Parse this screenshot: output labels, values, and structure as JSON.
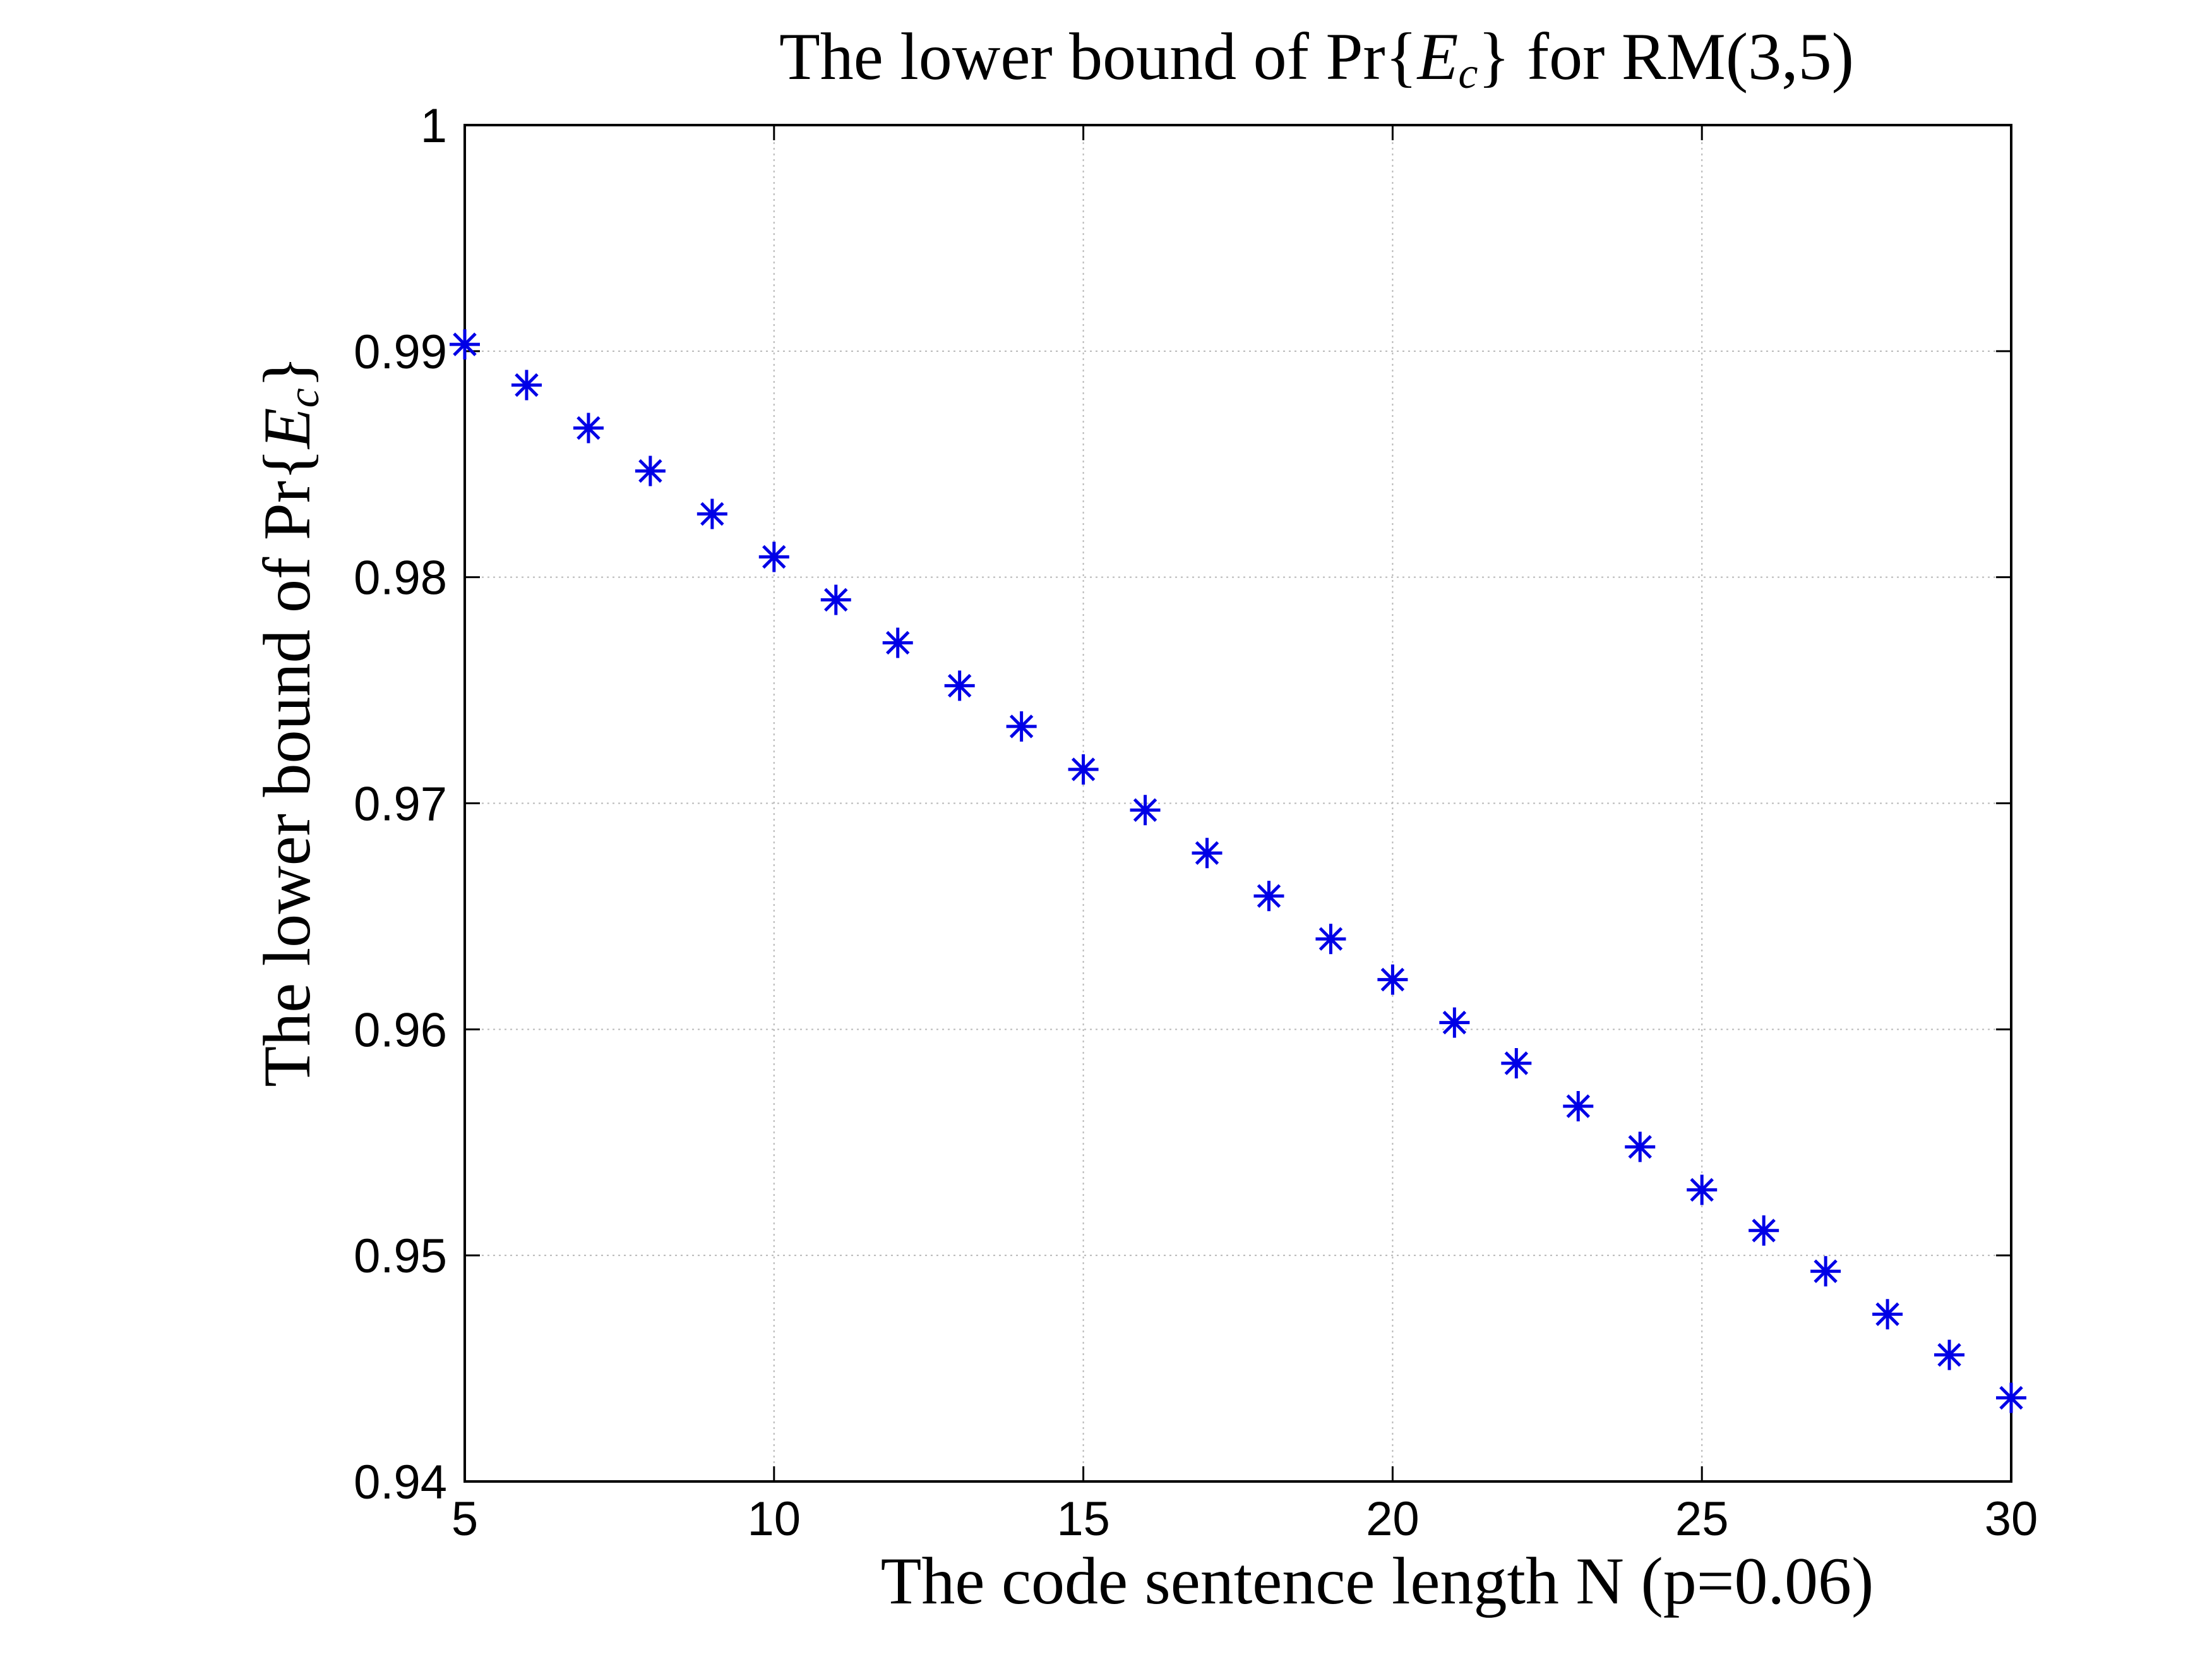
{
  "chart_data": {
    "type": "scatter",
    "title": {
      "prefix": "The lower bound of Pr",
      "open": "{",
      "var": "E",
      "sub": "c",
      "close": "}",
      "suffix": " for RM(3,5)"
    },
    "xlabel": "The code sentence length N (p=0.06)",
    "ylabel": {
      "prefix": "The lower bound of Pr",
      "open": "{",
      "var": "E",
      "sub": "c",
      "close": "}"
    },
    "xlim": [
      5,
      30
    ],
    "ylim": [
      0.94,
      1
    ],
    "grid": true,
    "marker": "asterisk",
    "color": "#0000e6",
    "x_ticks": [
      {
        "value": 5,
        "label": "5"
      },
      {
        "value": 10,
        "label": "10"
      },
      {
        "value": 15,
        "label": "15"
      },
      {
        "value": 20,
        "label": "20"
      },
      {
        "value": 25,
        "label": "25"
      },
      {
        "value": 30,
        "label": "30"
      }
    ],
    "y_ticks": [
      {
        "value": 0.94,
        "label": "0.94"
      },
      {
        "value": 0.95,
        "label": "0.95"
      },
      {
        "value": 0.96,
        "label": "0.96"
      },
      {
        "value": 0.97,
        "label": "0.97"
      },
      {
        "value": 0.98,
        "label": "0.98"
      },
      {
        "value": 0.99,
        "label": "0.99"
      },
      {
        "value": 1,
        "label": "1"
      }
    ],
    "series": [
      {
        "x": [
          5,
          6,
          7,
          8,
          9,
          10,
          11,
          12,
          13,
          14,
          15,
          16,
          17,
          18,
          19,
          20,
          21,
          22,
          23,
          24,
          25,
          26,
          27,
          28,
          29,
          30
        ],
        "y": [
          0.9903,
          0.9885,
          0.9866,
          0.9847,
          0.9828,
          0.9809,
          0.979,
          0.9771,
          0.9752,
          0.9734,
          0.9715,
          0.9697,
          0.9678,
          0.9659,
          0.964,
          0.9622,
          0.9603,
          0.9585,
          0.9566,
          0.9548,
          0.9529,
          0.9511,
          0.9493,
          0.9474,
          0.9456,
          0.9437
        ]
      }
    ]
  }
}
